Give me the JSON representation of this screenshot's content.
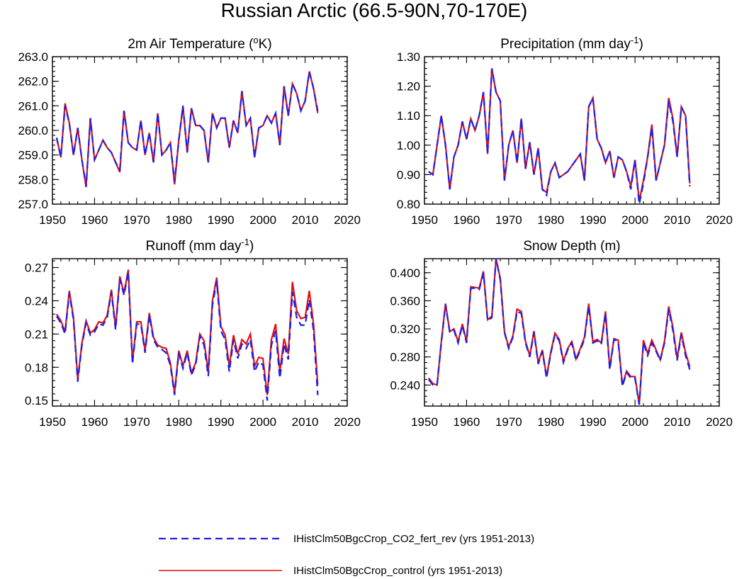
{
  "figure": {
    "title": "Russian Arctic (66.5-90N,70-170E)"
  },
  "colors": {
    "experiment": "#1f1fe6",
    "control": "#e01010"
  },
  "legend": {
    "placement": "bottom-center",
    "items": [
      {
        "label": "IHistClm50BgcCrop_CO2_fert_rev (yrs 1951-2013)",
        "style": "dashed",
        "color": "#1f1fe6"
      },
      {
        "label": "IHistClm50BgcCrop_control (yrs 1951-2013)",
        "style": "solid",
        "color": "#e01010"
      }
    ]
  },
  "chart_data": [
    {
      "type": "line",
      "title": "2m Air Temperature (°K)",
      "title_main": "2m Air Temperature (",
      "title_sup": "o",
      "title_end": "K)",
      "xlim": [
        1950,
        2020
      ],
      "xticks": [
        1950,
        1960,
        1970,
        1980,
        1990,
        2000,
        2010,
        2020
      ],
      "xtick_labels": [
        "1950",
        "1960",
        "1970",
        "1980",
        "1990",
        "2000",
        "2010",
        "2020"
      ],
      "ylim": [
        257.0,
        263.0
      ],
      "yticks": [
        257.0,
        258.0,
        259.0,
        260.0,
        261.0,
        262.0,
        263.0
      ],
      "ytick_labels": [
        "257.0",
        "258.0",
        "259.0",
        "260.0",
        "261.0",
        "262.0",
        "263.0"
      ],
      "grid": false,
      "x_start": 1951,
      "series": [
        {
          "name": "IHistClm50BgcCrop_CO2_fert_rev",
          "style": "dashed",
          "values": [
            259.7,
            258.9,
            261.0,
            260.3,
            259.0,
            260.1,
            258.8,
            257.7,
            260.5,
            258.8,
            259.2,
            259.6,
            259.3,
            259.1,
            258.7,
            258.4,
            260.8,
            259.5,
            259.3,
            259.2,
            260.4,
            259.0,
            259.9,
            258.7,
            260.7,
            259.0,
            259.2,
            259.5,
            257.9,
            259.6,
            261.0,
            259.1,
            260.9,
            260.2,
            260.2,
            260.0,
            258.7,
            260.7,
            260.1,
            260.5,
            260.5,
            259.3,
            260.4,
            259.9,
            261.6,
            260.2,
            260.5,
            258.9,
            260.1,
            260.2,
            260.6,
            260.3,
            260.7,
            259.4,
            261.8,
            260.6,
            261.9,
            261.5,
            260.8,
            261.2,
            262.4,
            261.7,
            260.8
          ]
        },
        {
          "name": "IHistClm50BgcCrop_control",
          "style": "solid",
          "values": [
            259.7,
            258.9,
            261.1,
            260.3,
            259.0,
            260.1,
            258.8,
            257.7,
            260.5,
            258.8,
            259.2,
            259.6,
            259.3,
            259.1,
            258.7,
            258.3,
            260.8,
            259.5,
            259.3,
            259.2,
            260.4,
            259.0,
            259.9,
            258.7,
            260.7,
            259.0,
            259.2,
            259.5,
            257.8,
            259.6,
            261.0,
            259.1,
            260.9,
            260.2,
            260.2,
            260.0,
            258.7,
            260.7,
            260.1,
            260.5,
            260.5,
            259.3,
            260.4,
            259.9,
            261.6,
            260.2,
            260.5,
            258.9,
            260.1,
            260.2,
            260.6,
            260.3,
            260.7,
            259.4,
            261.8,
            260.6,
            261.9,
            261.5,
            260.8,
            261.2,
            262.4,
            261.7,
            260.7
          ]
        }
      ]
    },
    {
      "type": "line",
      "title": "Precipitation (mm day-1)",
      "title_main": "Precipitation (mm day",
      "title_sup": "-1",
      "title_end": ")",
      "xlim": [
        1950,
        2020
      ],
      "xticks": [
        1950,
        1960,
        1970,
        1980,
        1990,
        2000,
        2010,
        2020
      ],
      "xtick_labels": [
        "1950",
        "1960",
        "1970",
        "1980",
        "1990",
        "2000",
        "2010",
        "2020"
      ],
      "ylim": [
        0.8,
        1.3
      ],
      "yticks": [
        0.8,
        0.9,
        1.0,
        1.1,
        1.2,
        1.3
      ],
      "ytick_labels": [
        "0.80",
        "0.90",
        "1.00",
        "1.10",
        "1.20",
        "1.30"
      ],
      "grid": false,
      "x_start": 1951,
      "series": [
        {
          "name": "IHistClm50BgcCrop_CO2_fert_rev",
          "style": "dashed",
          "values": [
            0.91,
            0.9,
            1.0,
            1.1,
            1.0,
            0.85,
            0.96,
            1.0,
            1.08,
            1.02,
            1.09,
            1.05,
            1.1,
            1.18,
            0.97,
            1.26,
            1.18,
            1.15,
            0.88,
            1.0,
            1.05,
            0.94,
            1.09,
            0.92,
            1.01,
            0.9,
            0.99,
            0.85,
            0.83,
            0.91,
            0.94,
            0.89,
            0.9,
            0.91,
            0.93,
            0.95,
            0.97,
            0.88,
            1.13,
            1.16,
            1.02,
            0.99,
            0.94,
            0.98,
            0.89,
            0.96,
            0.95,
            0.91,
            0.85,
            0.95,
            0.8,
            0.87,
            0.96,
            1.06,
            0.88,
            0.94,
            1.0,
            1.15,
            1.08,
            0.96,
            1.13,
            1.1,
            0.86
          ]
        },
        {
          "name": "IHistClm50BgcCrop_control",
          "style": "solid",
          "values": [
            0.91,
            0.9,
            1.0,
            1.1,
            1.0,
            0.85,
            0.96,
            1.0,
            1.08,
            1.02,
            1.09,
            1.05,
            1.1,
            1.18,
            0.97,
            1.26,
            1.18,
            1.15,
            0.88,
            1.0,
            1.05,
            0.94,
            1.09,
            0.92,
            1.01,
            0.9,
            0.99,
            0.85,
            0.84,
            0.91,
            0.94,
            0.89,
            0.9,
            0.91,
            0.93,
            0.95,
            0.97,
            0.88,
            1.13,
            1.16,
            1.02,
            0.99,
            0.94,
            0.98,
            0.89,
            0.96,
            0.95,
            0.91,
            0.86,
            0.95,
            0.81,
            0.88,
            0.96,
            1.07,
            0.88,
            0.94,
            1.0,
            1.16,
            1.09,
            0.96,
            1.13,
            1.1,
            0.87
          ]
        }
      ]
    },
    {
      "type": "line",
      "title": "Runoff (mm day-1)",
      "title_main": "Runoff (mm day",
      "title_sup": "-1",
      "title_end": ")",
      "xlim": [
        1950,
        2020
      ],
      "xticks": [
        1950,
        1960,
        1970,
        1980,
        1990,
        2000,
        2010,
        2020
      ],
      "xtick_labels": [
        "1950",
        "1960",
        "1970",
        "1980",
        "1990",
        "2000",
        "2010",
        "2020"
      ],
      "ylim": [
        0.145,
        0.278
      ],
      "yticks": [
        0.15,
        0.18,
        0.21,
        0.24,
        0.27
      ],
      "ytick_labels": [
        "0.15",
        "0.18",
        "0.21",
        "0.24",
        "0.27"
      ],
      "grid": false,
      "x_start": 1951,
      "series": [
        {
          "name": "IHistClm50BgcCrop_CO2_fert_rev",
          "style": "dashed",
          "values": [
            0.226,
            0.22,
            0.21,
            0.247,
            0.223,
            0.167,
            0.2,
            0.22,
            0.209,
            0.212,
            0.219,
            0.218,
            0.225,
            0.248,
            0.214,
            0.26,
            0.245,
            0.266,
            0.183,
            0.219,
            0.219,
            0.193,
            0.227,
            0.205,
            0.198,
            0.196,
            0.193,
            0.182,
            0.155,
            0.193,
            0.179,
            0.193,
            0.173,
            0.182,
            0.208,
            0.2,
            0.172,
            0.236,
            0.258,
            0.213,
            0.205,
            0.176,
            0.205,
            0.188,
            0.201,
            0.197,
            0.205,
            0.176,
            0.185,
            0.182,
            0.15,
            0.2,
            0.213,
            0.17,
            0.201,
            0.187,
            0.248,
            0.225,
            0.218,
            0.218,
            0.241,
            0.213,
            0.155
          ]
        },
        {
          "name": "IHistClm50BgcCrop_control",
          "style": "solid",
          "values": [
            0.228,
            0.222,
            0.212,
            0.249,
            0.225,
            0.169,
            0.202,
            0.222,
            0.211,
            0.214,
            0.221,
            0.22,
            0.227,
            0.25,
            0.216,
            0.262,
            0.247,
            0.268,
            0.185,
            0.221,
            0.221,
            0.195,
            0.229,
            0.207,
            0.2,
            0.198,
            0.197,
            0.184,
            0.157,
            0.195,
            0.181,
            0.195,
            0.175,
            0.184,
            0.21,
            0.204,
            0.176,
            0.24,
            0.261,
            0.217,
            0.209,
            0.181,
            0.209,
            0.192,
            0.205,
            0.201,
            0.21,
            0.181,
            0.189,
            0.188,
            0.155,
            0.205,
            0.219,
            0.176,
            0.206,
            0.192,
            0.257,
            0.231,
            0.224,
            0.225,
            0.249,
            0.219,
            0.164
          ]
        }
      ]
    },
    {
      "type": "line",
      "title": "Snow Depth (m)",
      "title_main": "Snow Depth (m)",
      "title_sup": "",
      "title_end": "",
      "xlim": [
        1950,
        2020
      ],
      "xticks": [
        1950,
        1960,
        1970,
        1980,
        1990,
        2000,
        2010,
        2020
      ],
      "xtick_labels": [
        "1950",
        "1960",
        "1970",
        "1980",
        "1990",
        "2000",
        "2010",
        "2020"
      ],
      "ylim": [
        0.21,
        0.42
      ],
      "yticks": [
        0.24,
        0.28,
        0.32,
        0.36,
        0.4
      ],
      "ytick_labels": [
        "0.240",
        "0.280",
        "0.320",
        "0.360",
        "0.400"
      ],
      "grid": false,
      "x_start": 1951,
      "series": [
        {
          "name": "IHistClm50BgcCrop_CO2_fert_rev",
          "style": "dashed",
          "values": [
            0.248,
            0.24,
            0.24,
            0.3,
            0.355,
            0.315,
            0.318,
            0.3,
            0.325,
            0.3,
            0.378,
            0.378,
            0.376,
            0.4,
            0.332,
            0.336,
            0.42,
            0.39,
            0.315,
            0.292,
            0.308,
            0.345,
            0.342,
            0.3,
            0.28,
            0.315,
            0.27,
            0.288,
            0.25,
            0.285,
            0.312,
            0.303,
            0.272,
            0.29,
            0.3,
            0.275,
            0.29,
            0.305,
            0.353,
            0.3,
            0.303,
            0.298,
            0.342,
            0.262,
            0.305,
            0.302,
            0.238,
            0.258,
            0.25,
            0.25,
            0.212,
            0.3,
            0.282,
            0.3,
            0.288,
            0.275,
            0.3,
            0.348,
            0.318,
            0.275,
            0.312,
            0.282,
            0.262
          ]
        },
        {
          "name": "IHistClm50BgcCrop_control",
          "style": "solid",
          "values": [
            0.25,
            0.242,
            0.24,
            0.302,
            0.356,
            0.316,
            0.32,
            0.302,
            0.327,
            0.302,
            0.38,
            0.379,
            0.378,
            0.402,
            0.333,
            0.338,
            0.42,
            0.392,
            0.316,
            0.294,
            0.31,
            0.348,
            0.345,
            0.302,
            0.282,
            0.317,
            0.272,
            0.29,
            0.252,
            0.287,
            0.314,
            0.305,
            0.274,
            0.292,
            0.302,
            0.277,
            0.292,
            0.308,
            0.356,
            0.302,
            0.305,
            0.3,
            0.345,
            0.264,
            0.306,
            0.304,
            0.24,
            0.26,
            0.252,
            0.252,
            0.212,
            0.304,
            0.285,
            0.304,
            0.29,
            0.276,
            0.302,
            0.352,
            0.322,
            0.278,
            0.315,
            0.286,
            0.266
          ]
        }
      ]
    }
  ]
}
